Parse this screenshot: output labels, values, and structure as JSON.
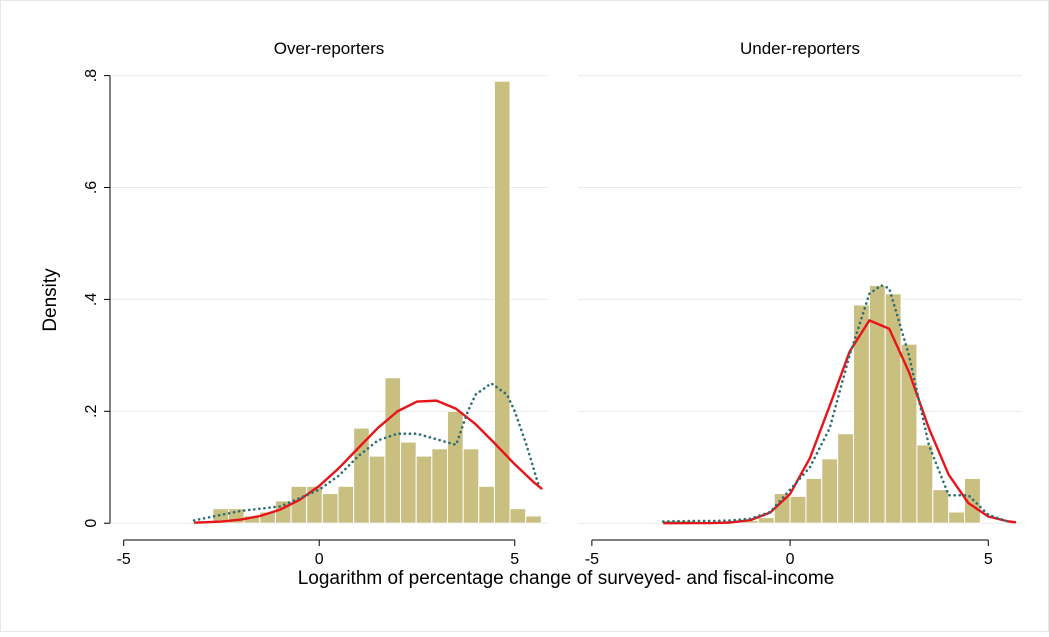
{
  "xlabel": "Logarithm of percentage change of surveyed- and fiscal-income",
  "ylabel": "Density",
  "chart_data": [
    {
      "type": "histogram",
      "title": "Over-reporters",
      "color": "#c9bf80",
      "bins": [
        -2.72,
        -2.32,
        -1.92,
        -1.52,
        -1.12,
        -0.72,
        -0.32,
        0.08,
        0.48,
        0.88,
        1.28,
        1.68,
        2.08,
        2.48,
        2.88,
        3.28,
        3.68,
        4.08,
        4.48,
        4.88,
        5.28,
        5.68
      ],
      "values": [
        0.026,
        0.026,
        0.013,
        0.02,
        0.04,
        0.066,
        0.066,
        0.053,
        0.066,
        0.17,
        0.12,
        0.26,
        0.145,
        0.12,
        0.133,
        0.2,
        0.133,
        0.066,
        0.79,
        0.026,
        0.013
      ],
      "lines": [
        {
          "color": "#e8141a",
          "style": "solid",
          "x": [
            -3.2,
            -2.5,
            -2,
            -1.5,
            -1,
            -0.5,
            0,
            0.5,
            1,
            1.5,
            2,
            2.5,
            3,
            3.5,
            4,
            4.5,
            5,
            5.5,
            5.7
          ],
          "y": [
            0.0009,
            0.003,
            0.0066,
            0.0131,
            0.0243,
            0.0418,
            0.0666,
            0.0983,
            0.1344,
            0.1703,
            0.1999,
            0.2174,
            0.2191,
            0.2045,
            0.1769,
            0.1418,
            0.1053,
            0.0724,
            0.0611
          ]
        },
        {
          "color": "#2a6e73",
          "style": "dotted",
          "x": [
            -3.2,
            -2.5,
            -2,
            -1.5,
            -1,
            -0.5,
            0,
            0.5,
            1,
            1.5,
            2,
            2.5,
            3,
            3.5,
            3.8,
            4,
            4.4,
            4.8,
            5,
            5.3,
            5.6
          ],
          "y": [
            0.005,
            0.015,
            0.022,
            0.026,
            0.03,
            0.045,
            0.06,
            0.085,
            0.12,
            0.148,
            0.16,
            0.16,
            0.15,
            0.14,
            0.2,
            0.23,
            0.25,
            0.23,
            0.2,
            0.14,
            0.07
          ]
        }
      ],
      "xlim": [
        -5.35,
        5.85
      ],
      "xticks": [
        -5,
        0,
        5
      ],
      "ylim": [
        -0.03,
        0.81
      ],
      "yticks": [
        0,
        {
          "value": 0.2,
          "label": ".2"
        },
        {
          "value": 0.4,
          "label": ".4"
        },
        {
          "value": 0.6,
          "label": ".6"
        },
        {
          "value": 0.8,
          "label": ".8"
        }
      ],
      "grid": true
    },
    {
      "type": "histogram",
      "title": "Under-reporters",
      "color": "#c9bf80",
      "bins": [
        -3.2,
        -2.8,
        -2.4,
        -2,
        -1.6,
        -1.2,
        -0.8,
        -0.4,
        0,
        0.4,
        0.8,
        1.2,
        1.6,
        2,
        2.4,
        2.8,
        3.2,
        3.6,
        4,
        4.4,
        4.8
      ],
      "values": [
        0.005,
        0.005,
        0.003,
        0.003,
        0.005,
        0.005,
        0.01,
        0.053,
        0.048,
        0.08,
        0.115,
        0.16,
        0.39,
        0.425,
        0.41,
        0.32,
        0.14,
        0.06,
        0.02,
        0.08
      ],
      "lines": [
        {
          "color": "#e8141a",
          "style": "solid",
          "x": [
            -3.2,
            -2,
            -1.5,
            -1,
            -0.5,
            0,
            0.5,
            1,
            1.5,
            2,
            2.5,
            3,
            3.5,
            4,
            4.5,
            5,
            5.5,
            5.7
          ],
          "y": [
            0,
            0.0003,
            0.0013,
            0.0056,
            0.0191,
            0.0523,
            0.1164,
            0.2098,
            0.3064,
            0.3625,
            0.3476,
            0.2701,
            0.17,
            0.0867,
            0.0358,
            0.012,
            0.0033,
            0.0017
          ]
        },
        {
          "color": "#2a6e73",
          "style": "dotted",
          "x": [
            -3.2,
            -2.5,
            -2,
            -1.5,
            -1,
            -0.5,
            0,
            0.5,
            1,
            1.5,
            2,
            2.3,
            2.5,
            3,
            3.5,
            4,
            4.5,
            5,
            5.5
          ],
          "y": [
            0.003,
            0.004,
            0.004,
            0.005,
            0.008,
            0.02,
            0.06,
            0.1,
            0.17,
            0.3,
            0.41,
            0.425,
            0.42,
            0.3,
            0.14,
            0.05,
            0.05,
            0.015,
            0.003
          ]
        }
      ],
      "xlim": [
        -5.35,
        5.85
      ],
      "xticks": [
        -5,
        0,
        5
      ],
      "ylim": [
        -0.03,
        0.81
      ],
      "yticks": [
        0,
        {
          "value": 0.2,
          "label": ".2"
        },
        {
          "value": 0.4,
          "label": ".4"
        },
        {
          "value": 0.6,
          "label": ".6"
        },
        {
          "value": 0.8,
          "label": ".8"
        }
      ],
      "grid": true
    }
  ]
}
